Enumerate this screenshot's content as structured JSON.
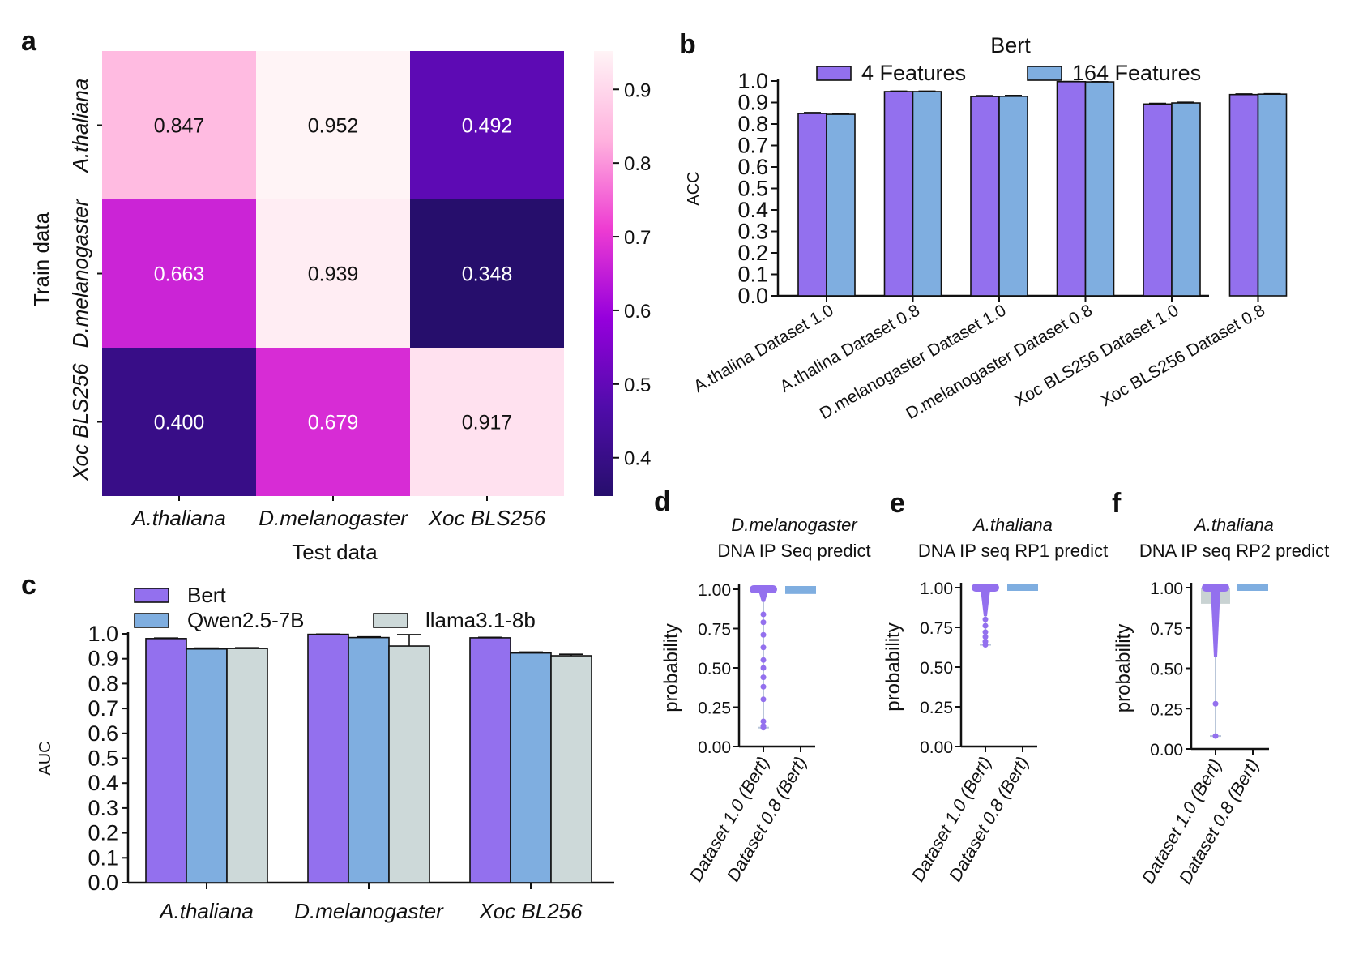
{
  "colors": {
    "bert": "#9370EE",
    "qwen": "#7FAEE0",
    "llama": "#CDD9D9",
    "bar_edge": "#111111",
    "violin": "#9370EE",
    "violin2": "#7FAEE0",
    "box_f": "#C9D3D3"
  },
  "chart_data": [
    {
      "panel": "a",
      "type": "heatmap",
      "rows": [
        "A.thaliana",
        "D.melanogaster",
        "Xoc BLS256"
      ],
      "cols": [
        "A.thaliana",
        "D.melanogaster",
        "Xoc BLS256"
      ],
      "values": [
        [
          0.847,
          0.952,
          0.492
        ],
        [
          0.663,
          0.939,
          0.348
        ],
        [
          0.4,
          0.679,
          0.917
        ]
      ],
      "value_labels": [
        [
          "0.847",
          "0.952",
          "0.492"
        ],
        [
          "0.663",
          "0.939",
          "0.348"
        ],
        [
          "0.400",
          "0.679",
          "0.917"
        ]
      ],
      "xlabel": "Test data",
      "ylabel": "Train data",
      "colorbar": {
        "min": 0.348,
        "max": 0.952,
        "ticks": [
          "0.9",
          "0.8",
          "0.7",
          "0.6",
          "0.5",
          "0.4"
        ],
        "tick_values": [
          0.9,
          0.8,
          0.7,
          0.6,
          0.5,
          0.4
        ]
      }
    },
    {
      "panel": "b",
      "type": "bar",
      "title": "Bert",
      "categories": [
        "A.thalina Dataset 1.0",
        "A.thalina  Dataset 0.8",
        "D.melanogaster Dataset 1.0",
        "D.melanogaster Dataset 0.8",
        "Xoc BLS256 Dataset 1.0",
        "Xoc BLS256 Dataset 0.8"
      ],
      "series": [
        {
          "name": "4 Features",
          "values": [
            0.849,
            0.951,
            0.928,
            0.997,
            0.893,
            0.937
          ],
          "err": [
            0.004,
            0.002,
            0.004,
            0.001,
            0.003,
            0.003
          ]
        },
        {
          "name": "164 Features",
          "values": [
            0.845,
            0.951,
            0.929,
            0.996,
            0.898,
            0.939
          ],
          "err": [
            0.004,
            0.002,
            0.004,
            0.001,
            0.003,
            0.002
          ]
        }
      ],
      "ylabel": "ACC",
      "ylim": [
        0.0,
        1.0
      ],
      "yticks": [
        "1.0",
        "0.9",
        "0.8",
        "0.7",
        "0.6",
        "0.5",
        "0.4",
        "0.3",
        "0.2",
        "0.1",
        "0.0"
      ]
    },
    {
      "panel": "c",
      "type": "bar",
      "categories": [
        "A.thaliana",
        "D.melanogaster",
        "Xoc BL256"
      ],
      "series": [
        {
          "name": "Bert",
          "values": [
            0.981,
            0.998,
            0.984
          ],
          "err": [
            0.002,
            0.001,
            0.002
          ]
        },
        {
          "name": "Qwen2.5-7B",
          "values": [
            0.939,
            0.985,
            0.923
          ],
          "err": [
            0.004,
            0.003,
            0.004
          ]
        },
        {
          "name": "llama3.1-8b",
          "values": [
            0.941,
            0.951,
            0.912
          ],
          "err": [
            0.003,
            0.046,
            0.006
          ]
        }
      ],
      "ylabel": "AUC",
      "ylim": [
        0.0,
        1.0
      ],
      "yticks": [
        "1.0",
        "0.9",
        "0.8",
        "0.7",
        "0.6",
        "0.5",
        "0.4",
        "0.3",
        "0.2",
        "0.1",
        "0.0"
      ]
    },
    {
      "panel": "d",
      "type": "scatter",
      "title_species": "D.melanogaster",
      "title_text": "DNA IP Seq predict",
      "categories": [
        "Dataset 1.0 (Bert)",
        "Dataset 0.8 (Bert)"
      ],
      "ylabel": "probability",
      "ylim": [
        0.0,
        1.0
      ],
      "yticks": [
        "1.00",
        "0.75",
        "0.50",
        "0.25",
        "0.00"
      ],
      "series_1": {
        "range": [
          0.12,
          1.0
        ],
        "dense_low": 0.92,
        "outliers": [
          0.84,
          0.79,
          0.71,
          0.63,
          0.55,
          0.5,
          0.44,
          0.38,
          0.3,
          0.16,
          0.13,
          0.12
        ]
      },
      "series_2": {
        "box": [
          0.97,
          1.0
        ]
      }
    },
    {
      "panel": "e",
      "type": "scatter",
      "title_species": "A.thaliana",
      "title_text": "DNA IP seq RP1 predict",
      "categories": [
        "Dataset 1.0 (Bert)",
        "Dataset 0.8 (Bert)"
      ],
      "ylabel": "probability",
      "ylim": [
        0.0,
        1.0
      ],
      "yticks": [
        "1.00",
        "0.75",
        "0.50",
        "0.25",
        "0.00"
      ],
      "series_1": {
        "range": [
          0.64,
          1.0
        ],
        "dense_low": 0.82,
        "outliers": [
          0.8,
          0.76,
          0.72,
          0.69,
          0.66,
          0.64
        ]
      },
      "series_2": {
        "box": [
          0.98,
          1.0
        ]
      }
    },
    {
      "panel": "f",
      "type": "scatter",
      "title_species": "A.thaliana",
      "title_text": "DNA IP seq RP2 predict",
      "categories": [
        "Dataset 1.0 (Bert)",
        "Dataset 0.8 (Bert)"
      ],
      "ylabel": "probability",
      "ylim": [
        0.0,
        1.0
      ],
      "yticks": [
        "1.00",
        "0.75",
        "0.50",
        "0.25",
        "0.00"
      ],
      "series_1": {
        "range": [
          0.08,
          1.0
        ],
        "dense_low": 0.57,
        "box": [
          0.9,
          1.0
        ],
        "outliers": [
          0.28,
          0.08
        ]
      },
      "series_2": {
        "box": [
          0.98,
          1.0
        ]
      }
    }
  ],
  "panel_letters": {
    "a": "a",
    "b": "b",
    "c": "c",
    "d": "d",
    "e": "e",
    "f": "f"
  }
}
